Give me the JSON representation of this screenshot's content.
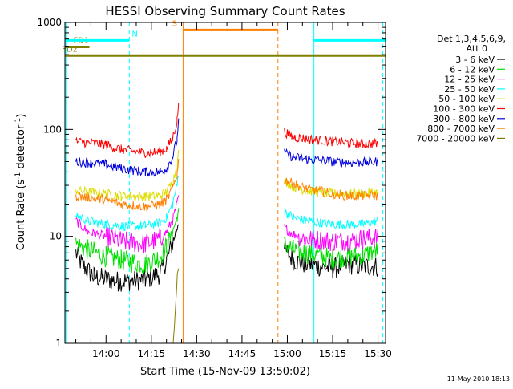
{
  "chart_data": {
    "type": "line",
    "title": "HESSI Observing Summary Count Rates",
    "xlabel": "Start Time (15-Nov-09 13:50:02)",
    "ylabel_parts": [
      "Count Rate (s",
      "-1",
      " detector",
      "-1",
      ")"
    ],
    "yscale": "log",
    "ylim": [
      1,
      1000
    ],
    "y_ticks": [
      {
        "value": 1,
        "label": "1"
      },
      {
        "value": 10,
        "label": "10"
      },
      {
        "value": 100,
        "label": "100"
      },
      {
        "value": 1000,
        "label": "1000"
      }
    ],
    "xlim_minutes": [
      -13.6,
      92.5
    ],
    "x_ticks": [
      {
        "minutes": 0,
        "label": "14:00"
      },
      {
        "minutes": 15,
        "label": "14:15"
      },
      {
        "minutes": 30,
        "label": "14:30"
      },
      {
        "minutes": 45,
        "label": "14:45"
      },
      {
        "minutes": 60,
        "label": "15:00"
      },
      {
        "minutes": 75,
        "label": "15:15"
      },
      {
        "minutes": 90,
        "label": "15:30"
      }
    ],
    "legend_header": [
      "Det 1,3,4,5,6,9,",
      "Att 0"
    ],
    "series": [
      {
        "name": "3 - 6 keV",
        "color": "#000000",
        "points": [
          [
            -10,
            7
          ],
          [
            -8,
            5.5
          ],
          [
            -4,
            4.2
          ],
          [
            4,
            3.8
          ],
          [
            13,
            3.9
          ],
          [
            18,
            4.5
          ],
          [
            20,
            6
          ],
          [
            22,
            8.5
          ],
          [
            23.5,
            12
          ],
          [
            24,
            14
          ],
          [
            59,
            7.5
          ],
          [
            62,
            6
          ],
          [
            66,
            5.5
          ],
          [
            75,
            5
          ],
          [
            80,
            5.5
          ],
          [
            85,
            5.3
          ],
          [
            90,
            5.2
          ]
        ]
      },
      {
        "name": "6 - 12 keV",
        "color": "#00dd00",
        "points": [
          [
            -10,
            8.5
          ],
          [
            -6,
            7.5
          ],
          [
            0,
            6.5
          ],
          [
            5,
            6
          ],
          [
            13,
            5.5
          ],
          [
            18,
            6.5
          ],
          [
            20,
            8
          ],
          [
            22,
            11
          ],
          [
            23.5,
            15
          ],
          [
            24,
            17
          ],
          [
            59,
            8.5
          ],
          [
            62,
            7.5
          ],
          [
            66,
            7
          ],
          [
            75,
            6.2
          ],
          [
            80,
            6.5
          ],
          [
            85,
            6.6
          ],
          [
            90,
            7.5
          ]
        ]
      },
      {
        "name": "12 - 25 keV",
        "color": "#ff00ff",
        "points": [
          [
            -10,
            14
          ],
          [
            -6,
            11
          ],
          [
            0,
            10
          ],
          [
            5,
            9
          ],
          [
            13,
            8.5
          ],
          [
            18,
            9.5
          ],
          [
            20,
            11
          ],
          [
            22,
            14
          ],
          [
            23.5,
            20
          ],
          [
            24,
            24
          ],
          [
            59,
            12
          ],
          [
            62,
            10.5
          ],
          [
            66,
            9.5
          ],
          [
            75,
            9
          ],
          [
            80,
            9.2
          ],
          [
            85,
            9.5
          ],
          [
            90,
            9.8
          ]
        ]
      },
      {
        "name": "25 - 50 keV",
        "color": "#00ffff",
        "points": [
          [
            -10,
            16
          ],
          [
            -6,
            14
          ],
          [
            0,
            13
          ],
          [
            5,
            12.5
          ],
          [
            13,
            12.5
          ],
          [
            18,
            13.5
          ],
          [
            20,
            15
          ],
          [
            22,
            20
          ],
          [
            23.5,
            30
          ],
          [
            24,
            40
          ],
          [
            59,
            17
          ],
          [
            62,
            15
          ],
          [
            66,
            14
          ],
          [
            75,
            13
          ],
          [
            80,
            13
          ],
          [
            85,
            13
          ],
          [
            90,
            14
          ]
        ]
      },
      {
        "name": "50 - 100 keV",
        "color": "#dddd00",
        "points": [
          [
            -10,
            27
          ],
          [
            -6,
            26
          ],
          [
            0,
            25
          ],
          [
            5,
            24
          ],
          [
            13,
            23.5
          ],
          [
            18,
            24
          ],
          [
            20,
            26
          ],
          [
            22,
            32
          ],
          [
            23.5,
            45
          ],
          [
            24,
            60
          ],
          [
            59,
            33
          ],
          [
            62,
            29
          ],
          [
            66,
            27
          ],
          [
            75,
            25
          ],
          [
            80,
            25
          ],
          [
            85,
            25
          ],
          [
            90,
            26
          ]
        ]
      },
      {
        "name": "100 - 300 keV",
        "color": "#ff0000",
        "points": [
          [
            -10,
            77
          ],
          [
            -6,
            75
          ],
          [
            0,
            72
          ],
          [
            5,
            65
          ],
          [
            13,
            60
          ],
          [
            18,
            62
          ],
          [
            20,
            66
          ],
          [
            22,
            82
          ],
          [
            23.5,
            120
          ],
          [
            24,
            180
          ],
          [
            59,
            95
          ],
          [
            62,
            85
          ],
          [
            66,
            82
          ],
          [
            75,
            77
          ],
          [
            80,
            75
          ],
          [
            85,
            73
          ],
          [
            90,
            74
          ]
        ]
      },
      {
        "name": "300 - 800 keV",
        "color": "#0000dd",
        "points": [
          [
            -10,
            50
          ],
          [
            -6,
            49
          ],
          [
            0,
            47
          ],
          [
            5,
            43
          ],
          [
            13,
            40
          ],
          [
            18,
            40
          ],
          [
            20,
            43
          ],
          [
            22,
            55
          ],
          [
            23.5,
            80
          ],
          [
            24,
            130
          ],
          [
            59,
            60
          ],
          [
            62,
            55
          ],
          [
            66,
            53
          ],
          [
            75,
            50
          ],
          [
            80,
            49
          ],
          [
            85,
            49
          ],
          [
            90,
            50
          ]
        ]
      },
      {
        "name": "800 - 7000 keV",
        "color": "#ff8000",
        "points": [
          [
            -10,
            24
          ],
          [
            -6,
            23
          ],
          [
            0,
            22
          ],
          [
            5,
            20
          ],
          [
            13,
            19
          ],
          [
            18,
            20
          ],
          [
            20,
            22
          ],
          [
            22,
            28
          ],
          [
            23.5,
            38
          ],
          [
            24,
            50
          ],
          [
            59,
            34
          ],
          [
            62,
            31
          ],
          [
            66,
            28
          ],
          [
            75,
            25
          ],
          [
            80,
            24
          ],
          [
            85,
            24
          ],
          [
            90,
            24
          ]
        ]
      },
      {
        "name": "7000 - 20000 keV",
        "color": "#808000",
        "points": [
          [
            22.2,
            1
          ],
          [
            22.6,
            1.4
          ],
          [
            23,
            2.2
          ],
          [
            23.3,
            3
          ],
          [
            23.6,
            4.5
          ],
          [
            24,
            5
          ]
        ]
      }
    ],
    "state_bars": [
      {
        "label": "FD1",
        "color": "#808000",
        "y": 590,
        "x_start": -13.6,
        "x_end": -5.5,
        "label_x": -8.2
      },
      {
        "label": "FD2",
        "color": "#808000",
        "y": 490,
        "x_start": -13.6,
        "x_end": 92.5,
        "label_x": -12
      },
      {
        "label": "N",
        "color": "#00ffff",
        "y": 680,
        "x_start": -13.6,
        "x_end": 7.7,
        "label_x": 9.5
      },
      {
        "label": "",
        "color": "#00ffff",
        "y": 680,
        "x_start": 68.8,
        "x_end": 92.5,
        "label_x": 0
      },
      {
        "label": "S",
        "color": "#ff8000",
        "y": 850,
        "x_start": 25.5,
        "x_end": 56.9,
        "label_x": 22.7
      }
    ],
    "vertical_lines": [
      {
        "minutes": -13.3,
        "color": "#00ffff",
        "style": "solid"
      },
      {
        "minutes": 7.7,
        "color": "#00ffff",
        "style": "dashed"
      },
      {
        "minutes": 25.5,
        "color": "#ff8000",
        "style": "solid"
      },
      {
        "minutes": 56.9,
        "color": "#ff8000",
        "style": "dashed"
      },
      {
        "minutes": 68.8,
        "color": "#00ffff",
        "style": "solid"
      },
      {
        "minutes": 91.6,
        "color": "#00ffff",
        "style": "dashed"
      }
    ],
    "footer_date": "11-May-2010 18:13"
  }
}
